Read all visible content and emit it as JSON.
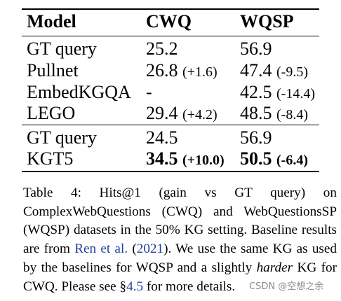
{
  "table": {
    "headers": [
      "Model",
      "CWQ",
      "WQSP"
    ],
    "group1": [
      {
        "model": "GT query",
        "cwq": "25.2",
        "cwq_delta": "",
        "wqsp": "56.9",
        "wqsp_delta": ""
      },
      {
        "model": "Pullnet",
        "cwq": "26.8",
        "cwq_delta": "(+1.6)",
        "wqsp": "47.4",
        "wqsp_delta": "(-9.5)"
      },
      {
        "model": "EmbedKGQA",
        "cwq": "-",
        "cwq_delta": "",
        "wqsp": "42.5",
        "wqsp_delta": "(-14.4)"
      },
      {
        "model": "LEGO",
        "cwq": "29.4",
        "cwq_delta": "(+4.2)",
        "wqsp": "48.5",
        "wqsp_delta": "(-8.4)"
      }
    ],
    "group2": [
      {
        "model": "GT query",
        "cwq": "24.5",
        "cwq_delta": "",
        "wqsp": "56.9",
        "wqsp_delta": ""
      },
      {
        "model": "KGT5",
        "cwq": "34.5",
        "cwq_delta": "(+10.0)",
        "wqsp": "50.5",
        "wqsp_delta": "(-6.4)"
      }
    ]
  },
  "caption": {
    "part1": "Table 4: Hits@1 (gain vs GT query) on ComplexWebQuestions (CWQ) and WebQuestionsSP (WQSP) datasets in the 50% KG setting. Baseline results are from ",
    "cite_author": "Ren et al.",
    "cite_year_open": " (",
    "cite_year": "2021",
    "part2": "). We use the same KG as used by the baselines for WQSP and a slightly ",
    "emph": "harder",
    "part3": " KG for CWQ. Please see §",
    "section_ref": "4.5",
    "part4": " for more details."
  },
  "watermark": "CSDN @空想之余"
}
